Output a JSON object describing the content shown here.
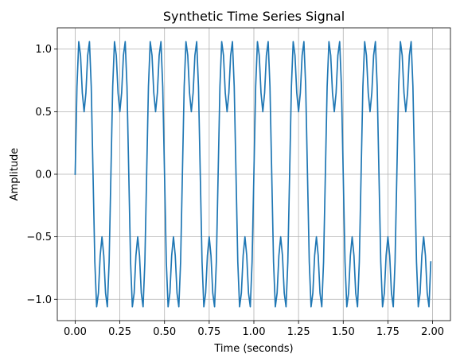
{
  "chart_data": {
    "type": "line",
    "title": "Synthetic Time Series Signal",
    "xlabel": "Time (seconds)",
    "ylabel": "Amplitude",
    "xlim": [
      -0.1,
      2.1
    ],
    "ylim": [
      -1.17,
      1.17
    ],
    "grid": true,
    "x_ticks": [
      0.0,
      0.25,
      0.5,
      0.75,
      1.0,
      1.25,
      1.5,
      1.75,
      2.0
    ],
    "x_tick_labels": [
      "0.00",
      "0.25",
      "0.50",
      "0.75",
      "1.00",
      "1.25",
      "1.50",
      "1.75",
      "2.00"
    ],
    "y_ticks": [
      -1.0,
      -0.5,
      0.0,
      0.5,
      1.0
    ],
    "y_tick_labels": [
      "−1.0",
      "−0.5",
      "0.0",
      "0.5",
      "1.0"
    ],
    "line_color": "#1f77b4",
    "series": [
      {
        "x": [
          0,
          0.01,
          0.02,
          0.03,
          0.04,
          0.05,
          0.06,
          0.07,
          0.08,
          0.09,
          0.1,
          0.11,
          0.12,
          0.13,
          0.14,
          0.15,
          0.16,
          0.17,
          0.18,
          0.19,
          0.2,
          0.21,
          0.22,
          0.23,
          0.24,
          0.25,
          0.26,
          0.27,
          0.28,
          0.29,
          0.3,
          0.31,
          0.32,
          0.33,
          0.34,
          0.35,
          0.36,
          0.37,
          0.38,
          0.39,
          0.4,
          0.41,
          0.42,
          0.43,
          0.44,
          0.45,
          0.46,
          0.47,
          0.48,
          0.49,
          0.5,
          0.51,
          0.52,
          0.53,
          0.54,
          0.55,
          0.56,
          0.57,
          0.58,
          0.59,
          0.6,
          0.61,
          0.62,
          0.63,
          0.64,
          0.65,
          0.66,
          0.67,
          0.68,
          0.69,
          0.7,
          0.71,
          0.72,
          0.73,
          0.74,
          0.75,
          0.76,
          0.77,
          0.78,
          0.79,
          0.8,
          0.81,
          0.82,
          0.83,
          0.84,
          0.85,
          0.86,
          0.87,
          0.88,
          0.89,
          0.9,
          0.91,
          0.92,
          0.93,
          0.94,
          0.95,
          0.96,
          0.97,
          0.98,
          0.99,
          1,
          1.01,
          1.02,
          1.03,
          1.04,
          1.05,
          1.06,
          1.07,
          1.08,
          1.09,
          1.1,
          1.11,
          1.12,
          1.13,
          1.14,
          1.15,
          1.16,
          1.17,
          1.18,
          1.19,
          1.2,
          1.21,
          1.22,
          1.23,
          1.24,
          1.25,
          1.26,
          1.27,
          1.28,
          1.29,
          1.3,
          1.31,
          1.32,
          1.33,
          1.34,
          1.35,
          1.36,
          1.37,
          1.38,
          1.39,
          1.4,
          1.41,
          1.42,
          1.43,
          1.44,
          1.45,
          1.46,
          1.47,
          1.48,
          1.49,
          1.5,
          1.51,
          1.52,
          1.53,
          1.54,
          1.55,
          1.56,
          1.57,
          1.58,
          1.59,
          1.6,
          1.61,
          1.62,
          1.63,
          1.64,
          1.65,
          1.66,
          1.67,
          1.68,
          1.69,
          1.7,
          1.71,
          1.72,
          1.73,
          1.74,
          1.75,
          1.76,
          1.77,
          1.78,
          1.79,
          1.8,
          1.81,
          1.82,
          1.83,
          1.84,
          1.85,
          1.86,
          1.87,
          1.88,
          1.89,
          1.9,
          1.91,
          1.92,
          1.93,
          1.94,
          1.95,
          1.96,
          1.97,
          1.98,
          1.99
        ],
        "y": [
          0,
          0.7,
          1.06,
          0.95,
          0.65,
          0.5,
          0.65,
          0.95,
          1.06,
          0.7,
          0,
          -0.7,
          -1.06,
          -0.95,
          -0.65,
          -0.5,
          -0.65,
          -0.95,
          -1.06,
          -0.7,
          0,
          0.7,
          1.06,
          0.95,
          0.65,
          0.5,
          0.65,
          0.95,
          1.06,
          0.7,
          0,
          -0.7,
          -1.06,
          -0.95,
          -0.65,
          -0.5,
          -0.65,
          -0.95,
          -1.06,
          -0.7,
          0,
          0.7,
          1.06,
          0.95,
          0.65,
          0.5,
          0.65,
          0.95,
          1.06,
          0.7,
          0,
          -0.7,
          -1.06,
          -0.95,
          -0.65,
          -0.5,
          -0.65,
          -0.95,
          -1.06,
          -0.7,
          0,
          0.7,
          1.06,
          0.95,
          0.65,
          0.5,
          0.65,
          0.95,
          1.06,
          0.7,
          0,
          -0.7,
          -1.06,
          -0.95,
          -0.65,
          -0.5,
          -0.65,
          -0.95,
          -1.06,
          -0.7,
          0,
          0.7,
          1.06,
          0.95,
          0.65,
          0.5,
          0.65,
          0.95,
          1.06,
          0.7,
          0,
          -0.7,
          -1.06,
          -0.95,
          -0.65,
          -0.5,
          -0.65,
          -0.95,
          -1.06,
          -0.7,
          0,
          0.7,
          1.06,
          0.95,
          0.65,
          0.5,
          0.65,
          0.95,
          1.06,
          0.7,
          0,
          -0.7,
          -1.06,
          -0.95,
          -0.65,
          -0.5,
          -0.65,
          -0.95,
          -1.06,
          -0.7,
          0,
          0.7,
          1.06,
          0.95,
          0.65,
          0.5,
          0.65,
          0.95,
          1.06,
          0.7,
          0,
          -0.7,
          -1.06,
          -0.95,
          -0.65,
          -0.5,
          -0.65,
          -0.95,
          -1.06,
          -0.7,
          0,
          0.7,
          1.06,
          0.95,
          0.65,
          0.5,
          0.65,
          0.95,
          1.06,
          0.7,
          0,
          -0.7,
          -1.06,
          -0.95,
          -0.65,
          -0.5,
          -0.65,
          -0.95,
          -1.06,
          -0.7,
          0,
          0.7,
          1.06,
          0.95,
          0.65,
          0.5,
          0.65,
          0.95,
          1.06,
          0.7,
          0,
          -0.7,
          -1.06,
          -0.95,
          -0.65,
          -0.5,
          -0.65,
          -0.95,
          -1.06,
          -0.7,
          0,
          0.7,
          1.06,
          0.95,
          0.65,
          0.5,
          0.65,
          0.95,
          1.06,
          0.7,
          0,
          -0.7,
          -1.06,
          -0.95,
          -0.65,
          -0.5,
          -0.65,
          -0.95,
          -1.06,
          -0.7
        ]
      }
    ]
  }
}
